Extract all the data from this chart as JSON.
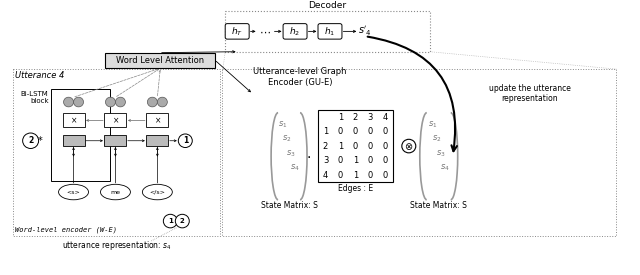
{
  "bg_color": "#ffffff",
  "decoder_label": "Decoder",
  "s_prime_label": "s'_4",
  "utterance_label": "Utterance 4",
  "bilstm_label": "Bi-LSTM\nblock",
  "wla_label": "Word Level Attention",
  "gue_label": "Utterance-level Graph\nEncoder (GU-E)",
  "we_label": "Word-level encoder (W-E)",
  "words": [
    "<s>",
    "me",
    "</s>"
  ],
  "state_matrix_label": "State Matrix: S",
  "edges_label": "Edges : E",
  "state_matrix2_label": "State Matrix: S",
  "update_label": "update the utterance\nrepresentation",
  "utterance_rep_label": "utterance representation: $s_4$",
  "edge_matrix": [
    [
      0,
      0,
      0,
      0
    ],
    [
      1,
      0,
      0,
      0
    ],
    [
      0,
      1,
      0,
      0
    ],
    [
      0,
      1,
      0,
      0
    ]
  ],
  "edge_col_labels": [
    "1",
    "2",
    "3",
    "4"
  ],
  "edge_row_labels": [
    "1",
    "2",
    "3",
    "4"
  ],
  "s_labels_left": [
    "s_1",
    "s_2",
    "s_3",
    "s_4"
  ],
  "s_labels_right": [
    "s_1",
    "s_2",
    "s_3",
    "s_4"
  ]
}
